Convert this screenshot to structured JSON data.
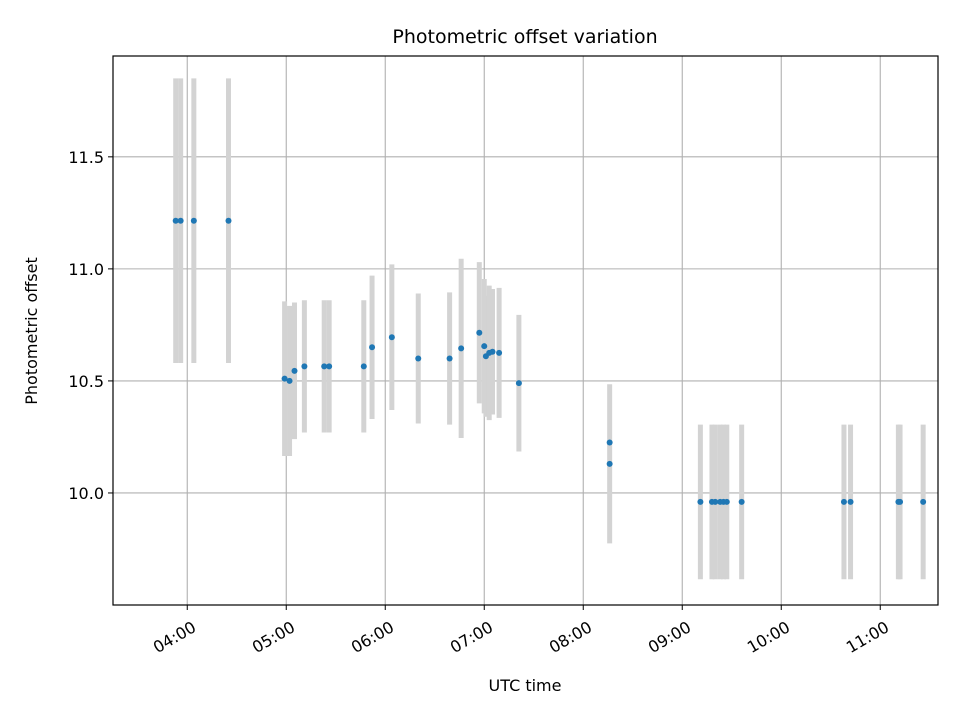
{
  "chart_data": {
    "type": "scatter",
    "title": "Photometric offset variation",
    "xlabel": "UTC time",
    "ylabel": "Photometric offset",
    "xlim": [
      "03:15",
      "11:35"
    ],
    "ylim": [
      9.5,
      11.95
    ],
    "xticks": [
      "04:00",
      "05:00",
      "06:00",
      "07:00",
      "08:00",
      "09:00",
      "10:00",
      "11:00"
    ],
    "yticks": [
      "10.0",
      "10.5",
      "11.0",
      "11.5"
    ],
    "grid": true,
    "colors": {
      "point": "#1f77b4",
      "errorbar": "#d3d3d3",
      "grid": "#b0b0b0"
    },
    "points": [
      {
        "x": "03:53",
        "y": 11.215,
        "yerr": 0.635
      },
      {
        "x": "03:56",
        "y": 11.215,
        "yerr": 0.635
      },
      {
        "x": "04:04",
        "y": 11.215,
        "yerr": 0.635
      },
      {
        "x": "04:25",
        "y": 11.215,
        "yerr": 0.635
      },
      {
        "x": "04:59",
        "y": 10.51,
        "yerr": 0.345
      },
      {
        "x": "05:02",
        "y": 10.5,
        "yerr": 0.335
      },
      {
        "x": "05:05",
        "y": 10.545,
        "yerr": 0.305
      },
      {
        "x": "05:11",
        "y": 10.565,
        "yerr": 0.295
      },
      {
        "x": "05:23",
        "y": 10.565,
        "yerr": 0.295
      },
      {
        "x": "05:26",
        "y": 10.565,
        "yerr": 0.295
      },
      {
        "x": "05:47",
        "y": 10.565,
        "yerr": 0.295
      },
      {
        "x": "05:52",
        "y": 10.65,
        "yerr": 0.32
      },
      {
        "x": "06:04",
        "y": 10.695,
        "yerr": 0.325
      },
      {
        "x": "06:20",
        "y": 10.6,
        "yerr": 0.29
      },
      {
        "x": "06:39",
        "y": 10.6,
        "yerr": 0.295
      },
      {
        "x": "06:46",
        "y": 10.645,
        "yerr": 0.4
      },
      {
        "x": "06:57",
        "y": 10.715,
        "yerr": 0.315
      },
      {
        "x": "07:00",
        "y": 10.655,
        "yerr": 0.3
      },
      {
        "x": "07:01",
        "y": 10.61,
        "yerr": 0.27
      },
      {
        "x": "07:03",
        "y": 10.625,
        "yerr": 0.3
      },
      {
        "x": "07:05",
        "y": 10.63,
        "yerr": 0.28
      },
      {
        "x": "07:09",
        "y": 10.625,
        "yerr": 0.29
      },
      {
        "x": "07:21",
        "y": 10.49,
        "yerr": 0.305
      },
      {
        "x": "08:16",
        "y": 10.13,
        "yerr": 0.355
      },
      {
        "x": "08:16",
        "y": 10.225,
        "yerr": 0.0
      },
      {
        "x": "09:11",
        "y": 9.96,
        "yerr": 0.345
      },
      {
        "x": "09:18",
        "y": 9.96,
        "yerr": 0.345
      },
      {
        "x": "09:20",
        "y": 9.96,
        "yerr": 0.345
      },
      {
        "x": "09:23",
        "y": 9.96,
        "yerr": 0.345
      },
      {
        "x": "09:25",
        "y": 9.96,
        "yerr": 0.345
      },
      {
        "x": "09:27",
        "y": 9.96,
        "yerr": 0.345
      },
      {
        "x": "09:36",
        "y": 9.96,
        "yerr": 0.345
      },
      {
        "x": "10:38",
        "y": 9.96,
        "yerr": 0.345
      },
      {
        "x": "10:42",
        "y": 9.96,
        "yerr": 0.345
      },
      {
        "x": "11:11",
        "y": 9.96,
        "yerr": 0.345
      },
      {
        "x": "11:12",
        "y": 9.96,
        "yerr": 0.345
      },
      {
        "x": "11:26",
        "y": 9.96,
        "yerr": 0.345
      }
    ]
  }
}
